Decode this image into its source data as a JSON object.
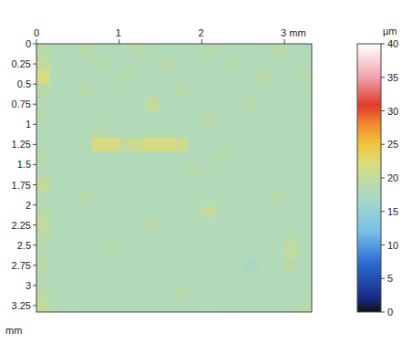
{
  "chart_data": {
    "type": "heatmap",
    "y_label": "mm",
    "xlim": [
      0,
      3.33
    ],
    "ylim": [
      0,
      3.33
    ],
    "xticks": [
      0,
      1,
      2,
      {
        "value": 3,
        "label": "3 mm"
      }
    ],
    "yticks": [
      0,
      0.25,
      0.5,
      0.75,
      1,
      1.25,
      1.5,
      1.75,
      2,
      2.25,
      2.5,
      2.75,
      3,
      3.25
    ],
    "cells": [
      [
        19,
        18,
        18,
        19,
        18,
        18,
        18,
        19,
        18,
        18,
        18,
        18,
        19,
        18,
        18,
        18,
        18,
        19,
        18,
        18
      ],
      [
        20,
        18,
        18,
        18,
        19,
        18,
        18,
        18,
        18,
        19,
        18,
        18,
        18,
        18,
        19,
        18,
        18,
        18,
        18,
        18
      ],
      [
        22,
        18,
        18,
        18,
        18,
        18,
        19,
        18,
        18,
        18,
        18,
        18,
        18,
        18,
        18,
        18,
        19,
        18,
        18,
        19
      ],
      [
        19,
        18,
        18,
        19,
        18,
        18,
        18,
        18,
        18,
        18,
        19,
        18,
        18,
        18,
        18,
        18,
        18,
        18,
        18,
        18
      ],
      [
        18,
        18,
        18,
        18,
        18,
        18,
        18,
        18,
        20,
        18,
        18,
        18,
        18,
        18,
        18,
        19,
        18,
        18,
        18,
        18
      ],
      [
        19,
        18,
        18,
        18,
        18,
        18,
        18,
        18,
        18,
        18,
        18,
        18,
        19,
        18,
        18,
        18,
        18,
        18,
        18,
        18
      ],
      [
        18,
        18,
        18,
        18,
        19,
        18,
        18,
        18,
        18,
        18,
        18,
        18,
        18,
        18,
        18,
        18,
        18,
        18,
        18,
        18
      ],
      [
        18,
        18,
        18,
        18,
        22,
        22,
        20,
        21,
        22,
        22,
        21,
        18,
        18,
        18,
        18,
        18,
        18,
        18,
        18,
        18
      ],
      [
        19,
        18,
        18,
        18,
        18,
        18,
        18,
        18,
        18,
        18,
        18,
        18,
        18,
        19,
        18,
        18,
        18,
        18,
        18,
        18
      ],
      [
        18,
        18,
        18,
        18,
        18,
        18,
        18,
        18,
        18,
        18,
        18,
        19,
        18,
        18,
        18,
        18,
        18,
        18,
        18,
        18
      ],
      [
        20,
        18,
        18,
        18,
        18,
        18,
        18,
        18,
        18,
        18,
        18,
        18,
        18,
        18,
        18,
        18,
        18,
        18,
        18,
        18
      ],
      [
        18,
        18,
        18,
        19,
        18,
        18,
        18,
        18,
        18,
        18,
        18,
        18,
        18,
        18,
        18,
        18,
        18,
        19,
        18,
        18
      ],
      [
        19,
        18,
        18,
        18,
        18,
        18,
        18,
        18,
        18,
        18,
        18,
        18,
        20,
        18,
        18,
        18,
        18,
        18,
        18,
        18
      ],
      [
        20,
        18,
        18,
        18,
        18,
        18,
        18,
        18,
        19,
        18,
        18,
        18,
        18,
        18,
        18,
        18,
        18,
        18,
        18,
        18
      ],
      [
        19,
        18,
        18,
        18,
        18,
        18,
        18,
        18,
        18,
        18,
        18,
        18,
        18,
        18,
        18,
        18,
        18,
        18,
        19,
        18
      ],
      [
        18,
        18,
        18,
        18,
        18,
        19,
        18,
        18,
        18,
        18,
        18,
        18,
        18,
        18,
        18,
        18,
        18,
        18,
        20,
        18
      ],
      [
        19,
        18,
        18,
        18,
        18,
        18,
        18,
        18,
        18,
        18,
        18,
        18,
        18,
        18,
        18,
        17,
        18,
        18,
        19,
        18
      ],
      [
        18,
        18,
        18,
        18,
        18,
        18,
        18,
        18,
        18,
        18,
        18,
        18,
        18,
        18,
        18,
        18,
        18,
        18,
        18,
        18
      ],
      [
        19,
        18,
        18,
        18,
        18,
        18,
        18,
        18,
        18,
        18,
        19,
        18,
        18,
        18,
        18,
        18,
        18,
        18,
        18,
        18
      ],
      [
        20,
        18,
        18,
        18,
        18,
        18,
        18,
        18,
        18,
        18,
        18,
        18,
        18,
        18,
        18,
        18,
        18,
        18,
        18,
        19
      ]
    ],
    "colorbar_label": "µm",
    "colorbar_range": [
      0,
      40
    ],
    "colorbar_ticks": [
      0,
      5,
      10,
      15,
      20,
      25,
      30,
      35,
      40
    ]
  }
}
